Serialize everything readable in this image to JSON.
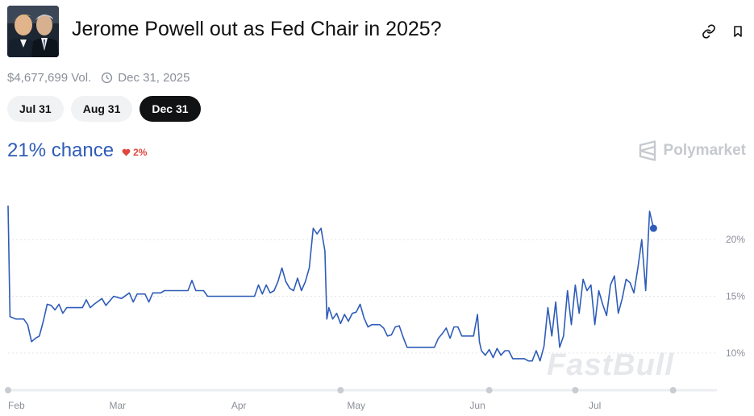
{
  "market": {
    "title": "Jerome Powell out as Fed Chair in 2025?",
    "volume": "$4,677,699 Vol.",
    "end_date": "Dec 31, 2025",
    "thumbnail_icon": "portrait-photo-icon"
  },
  "actions": {
    "link_icon": "link-icon",
    "bookmark_icon": "bookmark-icon"
  },
  "tabs": [
    {
      "label": "Jul 31",
      "active": false
    },
    {
      "label": "Aug 31",
      "active": false
    },
    {
      "label": "Dec 31",
      "active": true
    }
  ],
  "probability": {
    "label": "21% chance",
    "change": "2%",
    "change_icon": "heart-down-icon",
    "change_color": "#e0473c"
  },
  "brand": {
    "name": "Polymarket",
    "icon": "polymarket-logo-icon"
  },
  "watermark": {
    "text": "FastBull"
  },
  "colors": {
    "accent": "#2e5cb8",
    "line": "#2e5cb8",
    "grid": "#e3e5e8"
  },
  "chart_data": {
    "type": "line",
    "title": "",
    "xlabel": "",
    "ylabel": "",
    "ylim": [
      7.5,
      23.5
    ],
    "xlim": [
      0,
      181
    ],
    "y_ticks": [
      {
        "value": 10,
        "label": "10%"
      },
      {
        "value": 15,
        "label": "15%"
      },
      {
        "value": 20,
        "label": "20%"
      }
    ],
    "x_ticks": [
      {
        "value": 0,
        "label": "Feb"
      },
      {
        "value": 28,
        "label": "Mar"
      },
      {
        "value": 59,
        "label": "Apr"
      },
      {
        "value": 89,
        "label": "May"
      },
      {
        "value": 120,
        "label": "Jun"
      },
      {
        "value": 150,
        "label": "Jul"
      }
    ],
    "grid": true,
    "series": [
      {
        "values": [
          [
            0,
            23
          ],
          [
            0.5,
            13.2
          ],
          [
            2,
            13
          ],
          [
            4,
            13
          ],
          [
            5,
            12.5
          ],
          [
            6,
            11
          ],
          [
            7,
            11.3
          ],
          [
            8,
            11.5
          ],
          [
            9,
            12.8
          ],
          [
            10,
            14.3
          ],
          [
            11,
            14.2
          ],
          [
            12,
            13.8
          ],
          [
            13,
            14.3
          ],
          [
            14,
            13.5
          ],
          [
            15,
            14
          ],
          [
            17,
            14
          ],
          [
            19,
            14
          ],
          [
            20,
            14.7
          ],
          [
            21,
            14
          ],
          [
            22,
            14.3
          ],
          [
            24,
            14.8
          ],
          [
            25,
            14.2
          ],
          [
            27,
            15
          ],
          [
            29,
            14.8
          ],
          [
            31,
            15.3
          ],
          [
            32,
            14.5
          ],
          [
            33,
            15.2
          ],
          [
            35,
            15.2
          ],
          [
            36,
            14.5
          ],
          [
            37,
            15.3
          ],
          [
            39,
            15.3
          ],
          [
            40,
            15.5
          ],
          [
            42,
            15.5
          ],
          [
            44,
            15.5
          ],
          [
            46,
            15.5
          ],
          [
            47,
            16.4
          ],
          [
            48,
            15.5
          ],
          [
            50,
            15.5
          ],
          [
            51,
            15
          ],
          [
            53,
            15
          ],
          [
            55,
            15
          ],
          [
            57,
            15
          ],
          [
            58,
            15
          ],
          [
            60,
            15
          ],
          [
            61,
            15
          ],
          [
            62,
            15
          ],
          [
            63,
            15
          ],
          [
            64,
            16
          ],
          [
            65,
            15.2
          ],
          [
            66,
            16
          ],
          [
            67,
            15.3
          ],
          [
            68,
            15.5
          ],
          [
            69,
            16.3
          ],
          [
            70,
            17.5
          ],
          [
            71,
            16.3
          ],
          [
            72,
            15.7
          ],
          [
            73,
            15.5
          ],
          [
            74,
            16.6
          ],
          [
            75,
            15.5
          ],
          [
            76,
            16.3
          ],
          [
            77,
            17.5
          ],
          [
            78,
            21
          ],
          [
            79,
            20.5
          ],
          [
            80,
            21
          ],
          [
            81,
            19
          ],
          [
            81.5,
            13
          ],
          [
            82,
            14
          ],
          [
            83,
            13
          ],
          [
            84,
            13.5
          ],
          [
            85,
            12.6
          ],
          [
            86,
            13.4
          ],
          [
            87,
            12.8
          ],
          [
            88,
            13.5
          ],
          [
            89,
            13.6
          ],
          [
            90,
            14.3
          ],
          [
            91,
            13.1
          ],
          [
            92,
            12.3
          ],
          [
            93,
            12.5
          ],
          [
            95,
            12.5
          ],
          [
            96,
            12.2
          ],
          [
            97,
            11.5
          ],
          [
            98,
            11.6
          ],
          [
            99,
            12.3
          ],
          [
            100,
            12.4
          ],
          [
            101,
            11.4
          ],
          [
            102,
            10.5
          ],
          [
            104,
            10.5
          ],
          [
            106,
            10.5
          ],
          [
            108,
            10.5
          ],
          [
            109,
            10.5
          ],
          [
            110,
            11.3
          ],
          [
            111,
            11.7
          ],
          [
            112,
            12.2
          ],
          [
            113,
            11.3
          ],
          [
            114,
            12.3
          ],
          [
            115,
            12.3
          ],
          [
            116,
            11.5
          ],
          [
            118,
            11.5
          ],
          [
            119,
            11.5
          ],
          [
            120,
            13.4
          ],
          [
            120.5,
            11
          ],
          [
            121,
            10.2
          ],
          [
            122,
            9.8
          ],
          [
            123,
            10.3
          ],
          [
            124,
            9.6
          ],
          [
            125,
            10.4
          ],
          [
            126,
            9.8
          ],
          [
            127,
            10.2
          ],
          [
            128,
            10.2
          ],
          [
            129,
            9.5
          ],
          [
            131,
            9.5
          ],
          [
            132,
            9.5
          ],
          [
            133,
            9.3
          ],
          [
            134,
            9.3
          ],
          [
            135,
            10.2
          ],
          [
            136,
            9.3
          ],
          [
            137,
            10.6
          ],
          [
            138,
            14
          ],
          [
            139,
            11.5
          ],
          [
            140,
            14.5
          ],
          [
            141,
            10.5
          ],
          [
            142,
            11.5
          ],
          [
            143,
            15.5
          ],
          [
            144,
            12.5
          ],
          [
            145,
            16
          ],
          [
            146,
            13.5
          ],
          [
            147,
            16.5
          ],
          [
            148,
            15.5
          ],
          [
            149,
            16
          ],
          [
            150,
            12.5
          ],
          [
            151,
            15.5
          ],
          [
            152,
            14.3
          ],
          [
            153,
            13.3
          ],
          [
            154,
            16
          ],
          [
            155,
            16.8
          ],
          [
            156,
            13.5
          ],
          [
            157,
            14.8
          ],
          [
            158,
            16.5
          ],
          [
            159,
            16.2
          ],
          [
            160,
            15.3
          ],
          [
            161,
            17.5
          ],
          [
            162,
            20
          ],
          [
            163,
            15.5
          ],
          [
            164,
            22.5
          ],
          [
            165,
            21
          ]
        ]
      }
    ],
    "current_point": {
      "x": 165,
      "y": 21
    },
    "range_handle_positions": [
      0,
      85,
      123,
      145,
      170
    ]
  }
}
